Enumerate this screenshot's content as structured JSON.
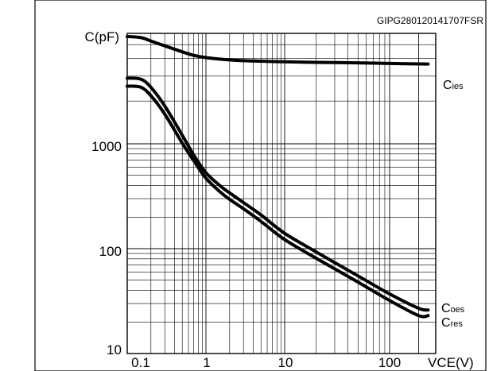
{
  "figure_code": "GIPG280120141707FSR",
  "chart_data": {
    "type": "line",
    "title": "",
    "xlabel": "VCE(V)",
    "ylabel": "C(pF)",
    "x_scale": "log",
    "y_scale": "log",
    "xlim": [
      0.1,
      300
    ],
    "ylim": [
      10,
      6000
    ],
    "grid": true,
    "x_ticks": [
      "0.1",
      "1",
      "10",
      "100"
    ],
    "y_ticks": [
      "10",
      "100",
      "1000"
    ],
    "series": [
      {
        "name": "Cies",
        "label_main": "C",
        "label_sub": "ies",
        "x": [
          0.1,
          0.15,
          0.2,
          0.3,
          0.5,
          0.7,
          1,
          1.5,
          2,
          3,
          5,
          10,
          20,
          50,
          100,
          250
        ],
        "y": [
          5700,
          5600,
          5300,
          4900,
          4450,
          4200,
          4050,
          3950,
          3900,
          3850,
          3820,
          3780,
          3750,
          3720,
          3680,
          3650
        ]
      },
      {
        "name": "Coes",
        "label_main": "C",
        "label_sub": "oes",
        "x": [
          0.1,
          0.15,
          0.2,
          0.3,
          0.5,
          0.7,
          1,
          1.5,
          2,
          3,
          5,
          10,
          20,
          50,
          100,
          200,
          250
        ],
        "y": [
          2900,
          2850,
          2500,
          1850,
          1150,
          780,
          530,
          400,
          340,
          275,
          210,
          140,
          93,
          55,
          37,
          27,
          26
        ]
      },
      {
        "name": "Cres",
        "label_main": "C",
        "label_sub": "res",
        "x": [
          0.1,
          0.15,
          0.2,
          0.3,
          0.5,
          0.7,
          1,
          1.5,
          2,
          3,
          5,
          10,
          20,
          50,
          100,
          200,
          250
        ],
        "y": [
          2550,
          2500,
          2180,
          1620,
          1010,
          690,
          470,
          350,
          295,
          240,
          182,
          122,
          81,
          48,
          32,
          23,
          23
        ]
      }
    ]
  }
}
